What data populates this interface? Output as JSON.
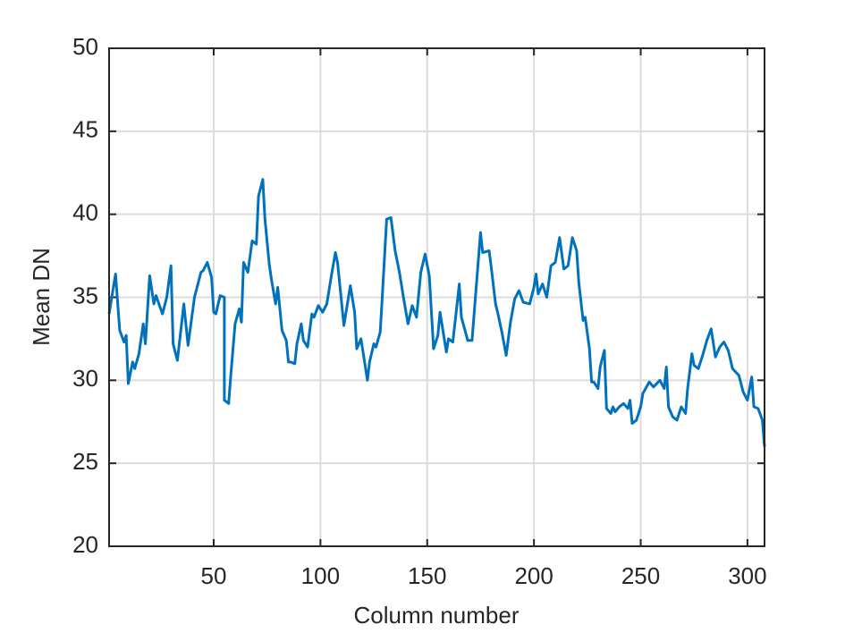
{
  "chart_data": {
    "type": "line",
    "x_label": "Column number",
    "y_label": "Mean DN",
    "x": [
      1,
      4,
      6,
      8,
      9,
      10,
      12,
      13,
      15,
      17,
      18,
      20,
      22,
      23,
      26,
      28,
      30,
      31,
      33,
      36,
      38,
      41,
      44,
      45,
      47,
      49,
      50,
      51,
      53,
      55,
      55,
      57,
      58,
      60,
      62,
      63,
      64,
      66,
      68,
      70,
      71,
      73,
      74,
      76,
      77,
      79,
      80,
      82,
      84,
      85,
      86,
      88,
      89,
      91,
      92,
      94,
      96,
      97,
      99,
      101,
      103,
      105,
      107,
      108,
      111,
      112,
      114,
      116,
      117,
      119,
      122,
      123,
      125,
      126,
      128,
      129,
      131,
      133,
      135,
      137,
      139,
      141,
      143,
      145,
      147,
      149,
      151,
      153,
      155,
      156,
      159,
      160,
      162,
      164,
      165,
      166,
      169,
      171,
      173,
      175,
      176,
      179,
      180,
      182,
      183,
      185,
      187,
      189,
      191,
      193,
      195,
      198,
      200,
      201,
      202,
      204,
      206,
      208,
      210,
      212,
      214,
      216,
      218,
      220,
      221,
      223,
      224,
      226,
      227,
      228,
      230,
      231,
      233,
      234,
      236,
      237,
      238,
      240,
      242,
      244,
      245,
      246,
      248,
      250,
      251,
      254,
      256,
      259,
      261,
      262,
      263,
      265,
      267,
      269,
      271,
      272,
      274,
      275,
      277,
      279,
      281,
      283,
      285,
      287,
      289,
      291,
      293,
      296,
      298,
      300,
      302,
      303,
      305,
      307,
      308
    ],
    "values": [
      34.0,
      36.4,
      33.0,
      32.3,
      32.7,
      29.8,
      31.1,
      30.7,
      31.6,
      33.4,
      32.2,
      36.3,
      34.6,
      35.1,
      34.0,
      35.0,
      36.9,
      32.2,
      31.2,
      34.6,
      32.1,
      35.0,
      36.5,
      36.6,
      37.1,
      36.2,
      34.1,
      34.0,
      35.1,
      35.0,
      28.8,
      28.6,
      30.3,
      33.4,
      34.3,
      33.5,
      37.1,
      36.5,
      38.4,
      38.2,
      41.1,
      42.1,
      39.7,
      37.0,
      36.1,
      34.6,
      35.6,
      33.0,
      32.4,
      31.1,
      31.1,
      31.0,
      32.2,
      33.4,
      32.4,
      32.0,
      34.0,
      33.8,
      34.5,
      34.1,
      34.6,
      36.2,
      37.7,
      37.1,
      33.3,
      34.1,
      35.7,
      34.1,
      31.9,
      32.5,
      30.0,
      31.1,
      32.2,
      32.0,
      32.9,
      35.1,
      39.7,
      39.8,
      37.8,
      36.5,
      34.9,
      33.4,
      34.5,
      33.8,
      36.5,
      37.6,
      36.3,
      31.9,
      32.7,
      34.1,
      31.7,
      32.5,
      32.3,
      34.6,
      35.8,
      33.8,
      32.4,
      32.4,
      35.7,
      38.9,
      37.7,
      37.8,
      36.8,
      34.6,
      34.1,
      32.9,
      31.5,
      33.5,
      34.9,
      35.4,
      34.7,
      34.6,
      35.6,
      36.4,
      35.2,
      35.8,
      35.0,
      36.9,
      37.1,
      38.6,
      36.7,
      36.9,
      38.6,
      37.8,
      35.9,
      33.6,
      33.8,
      31.9,
      29.9,
      29.9,
      29.5,
      30.8,
      31.8,
      28.3,
      28.0,
      28.4,
      28.1,
      28.4,
      28.6,
      28.3,
      28.8,
      27.4,
      27.6,
      28.4,
      29.2,
      29.9,
      29.6,
      30.0,
      29.5,
      30.8,
      28.4,
      27.8,
      27.6,
      28.4,
      28.0,
      29.5,
      31.6,
      30.9,
      30.7,
      31.5,
      32.4,
      33.1,
      31.4,
      32.0,
      32.3,
      31.8,
      30.7,
      30.3,
      29.3,
      28.8,
      30.2,
      28.4,
      28.3,
      27.6,
      26.0
    ],
    "color": "#0072bd",
    "xlim": [
      1,
      308
    ],
    "xticks": [
      50,
      100,
      150,
      200,
      250,
      300
    ],
    "ylim": [
      20,
      50
    ],
    "yticks": [
      20,
      25,
      30,
      35,
      40,
      45,
      50
    ],
    "grid": true
  }
}
